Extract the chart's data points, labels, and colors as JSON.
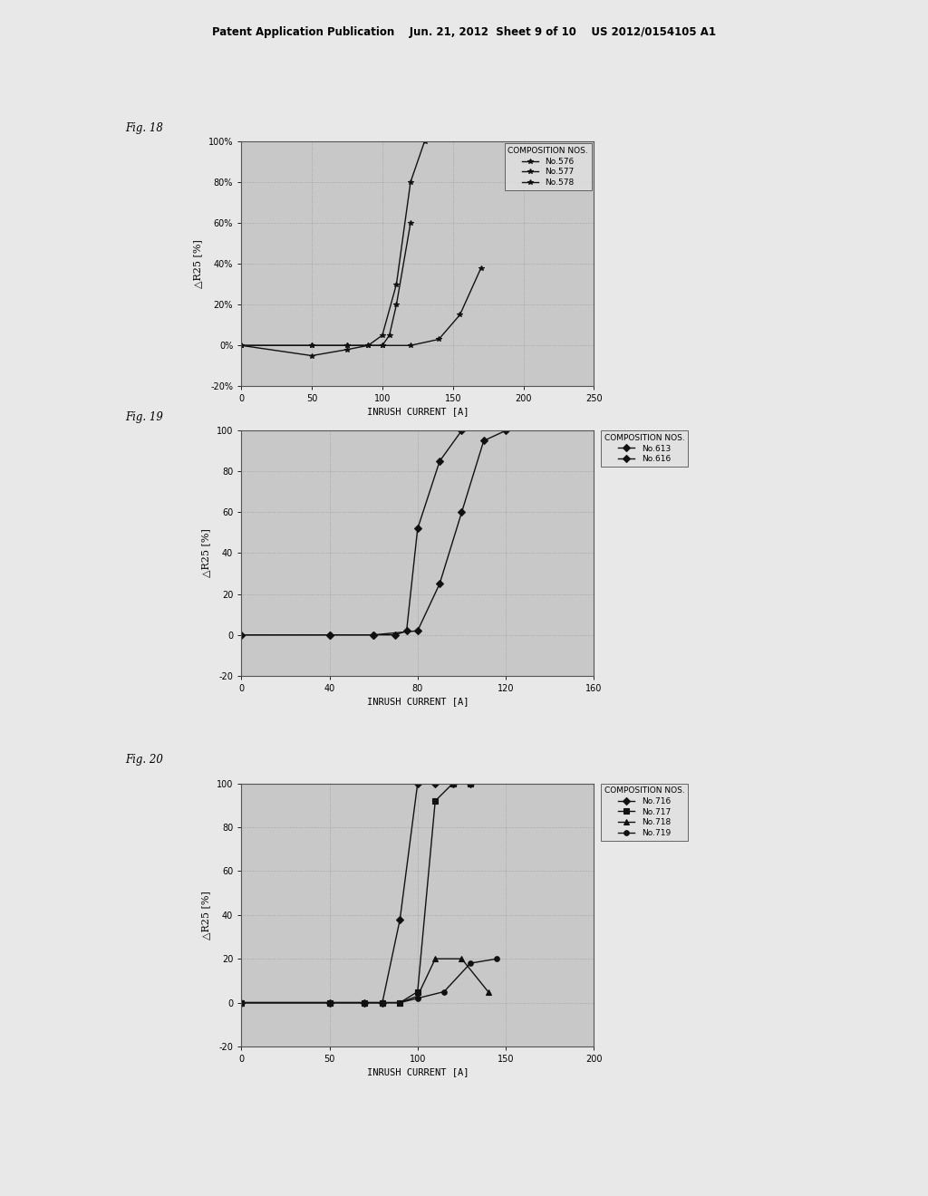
{
  "page_background": "#e8e8e8",
  "plot_background": "#d8d8d8",
  "header_text": "Patent Application Publication    Jun. 21, 2012  Sheet 9 of 10    US 2012/0154105 A1",
  "fig18": {
    "title": "Fig. 18",
    "xlabel": "INRUSH CURRENT [A]",
    "ylabel": "△R25 [%]",
    "xlim": [
      0,
      250
    ],
    "ylim": [
      -20,
      100
    ],
    "xticks": [
      0,
      50,
      100,
      150,
      200,
      250
    ],
    "yticks": [
      -20,
      0,
      20,
      40,
      60,
      80,
      100
    ],
    "ytick_labels": [
      "-20%",
      "0%",
      "20%",
      "40%",
      "60%",
      "80%",
      "100%"
    ],
    "legend_title": "COMPOSITION NOS.",
    "legend_inside": true,
    "series": [
      {
        "label": "No.576",
        "marker": "*",
        "x": [
          0,
          50,
          75,
          90,
          100,
          110,
          120,
          130
        ],
        "y": [
          0,
          0,
          0,
          0,
          5,
          30,
          80,
          100
        ]
      },
      {
        "label": "No.577",
        "marker": "*",
        "x": [
          0,
          50,
          75,
          90,
          100,
          105,
          110,
          120
        ],
        "y": [
          0,
          -5,
          -2,
          0,
          0,
          5,
          20,
          60
        ]
      },
      {
        "label": "No.578",
        "marker": "*",
        "x": [
          0,
          50,
          75,
          100,
          120,
          140,
          155,
          170
        ],
        "y": [
          0,
          0,
          0,
          0,
          0,
          3,
          15,
          38
        ]
      }
    ]
  },
  "fig19": {
    "title": "Fig. 19",
    "xlabel": "INRUSH CURRENT [A]",
    "ylabel": "△R25 [%]",
    "xlim": [
      0,
      160
    ],
    "ylim": [
      -20,
      100
    ],
    "xticks": [
      0,
      40,
      80,
      120,
      160
    ],
    "yticks": [
      -20,
      0,
      20,
      40,
      60,
      80,
      100
    ],
    "ytick_labels": [
      "-20",
      "0",
      "20",
      "40",
      "60",
      "80",
      "100"
    ],
    "legend_title": "COMPOSITION NOS.",
    "legend_inside": false,
    "series": [
      {
        "label": "No.613",
        "marker": "D",
        "x": [
          0,
          40,
          60,
          70,
          75,
          80,
          90,
          100
        ],
        "y": [
          0,
          0,
          0,
          0,
          2,
          52,
          85,
          100
        ]
      },
      {
        "label": "No.616",
        "marker": "D",
        "x": [
          0,
          40,
          60,
          80,
          90,
          100,
          110,
          120
        ],
        "y": [
          0,
          0,
          0,
          2,
          25,
          60,
          95,
          100
        ]
      }
    ]
  },
  "fig20": {
    "title": "Fig. 20",
    "xlabel": "INRUSH CURRENT [A]",
    "ylabel": "△R25 [%]",
    "xlim": [
      0,
      200
    ],
    "ylim": [
      -20,
      100
    ],
    "xticks": [
      0,
      50,
      100,
      150,
      200
    ],
    "yticks": [
      -20,
      0,
      20,
      40,
      60,
      80,
      100
    ],
    "ytick_labels": [
      "-20",
      "0",
      "20",
      "40",
      "60",
      "80",
      "100"
    ],
    "legend_title": "COMPOSITION NOS.",
    "legend_inside": false,
    "series": [
      {
        "label": "No.716",
        "marker": "D",
        "x": [
          0,
          50,
          70,
          80,
          90,
          100,
          110,
          120,
          130
        ],
        "y": [
          0,
          0,
          0,
          0,
          38,
          100,
          100,
          100,
          100
        ]
      },
      {
        "label": "No.717",
        "marker": "s",
        "x": [
          0,
          50,
          70,
          80,
          90,
          100,
          110,
          120,
          130
        ],
        "y": [
          0,
          0,
          0,
          0,
          0,
          5,
          92,
          100,
          100
        ]
      },
      {
        "label": "No.718",
        "marker": "^",
        "x": [
          0,
          50,
          70,
          80,
          90,
          100,
          110,
          125,
          140
        ],
        "y": [
          0,
          0,
          0,
          0,
          0,
          3,
          20,
          20,
          5
        ]
      },
      {
        "label": "No.719",
        "marker": "o",
        "x": [
          0,
          50,
          70,
          80,
          90,
          100,
          115,
          130,
          145
        ],
        "y": [
          0,
          0,
          0,
          0,
          0,
          2,
          5,
          18,
          20
        ]
      }
    ]
  }
}
